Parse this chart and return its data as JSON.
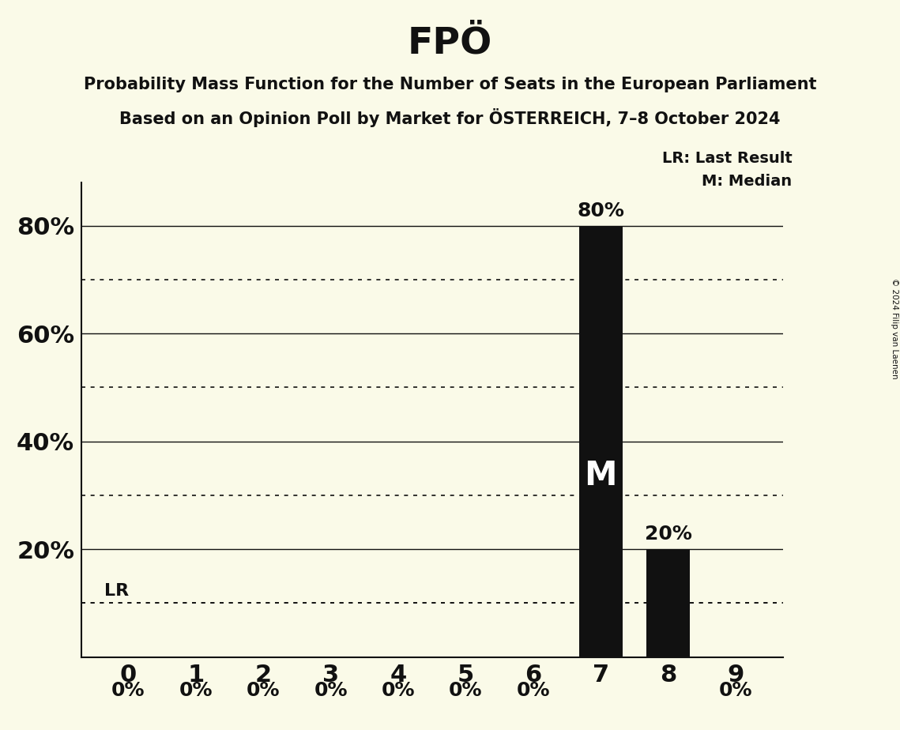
{
  "title": "FPÖ",
  "subtitle1": "Probability Mass Function for the Number of Seats in the European Parliament",
  "subtitle2": "Based on an Opinion Poll by Market for ÖSTERREICH, 7–8 October 2024",
  "copyright": "© 2024 Filip van Laenen",
  "categories": [
    0,
    1,
    2,
    3,
    4,
    5,
    6,
    7,
    8,
    9
  ],
  "values": [
    0,
    0,
    0,
    0,
    0,
    0,
    0,
    80,
    20,
    0
  ],
  "bar_color": "#111111",
  "background_color": "#fafae8",
  "text_color": "#111111",
  "median_seat": 7,
  "last_result_value": 10,
  "ylim_max": 88,
  "yticks": [
    20,
    40,
    60,
    80
  ],
  "solid_lines": [
    20,
    40,
    60,
    80
  ],
  "dotted_lines": [
    10,
    30,
    50,
    70
  ],
  "legend_lr": "LR: Last Result",
  "legend_m": "M: Median",
  "lr_label": "LR",
  "bar_width": 0.65,
  "title_fontsize": 34,
  "subtitle_fontsize": 15,
  "ytick_fontsize": 22,
  "xtick_fontsize": 22,
  "label_fontsize": 18,
  "legend_fontsize": 14,
  "m_fontsize": 30,
  "lr_fontsize": 16
}
